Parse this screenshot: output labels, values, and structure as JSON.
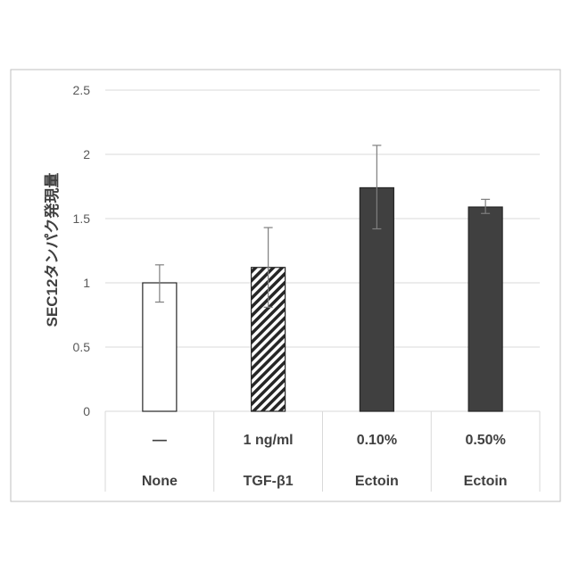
{
  "chart_data": {
    "type": "bar",
    "ylabel": "SEC12タンパク発現量",
    "ylim": [
      0,
      2.5
    ],
    "yticks": [
      "0",
      "0.5",
      "1",
      "1.5",
      "2",
      "2.5"
    ],
    "yticks_values": [
      0,
      0.5,
      1,
      1.5,
      2,
      2.5
    ],
    "grid": true,
    "categories": [
      {
        "dose": "—",
        "name": "None"
      },
      {
        "dose": "1 ng/ml",
        "name": "TGF-β1"
      },
      {
        "dose": "0.10%",
        "name": "Ectoin"
      },
      {
        "dose": "0.50%",
        "name": "Ectoin"
      }
    ],
    "values": [
      1.0,
      1.12,
      1.74,
      1.59
    ],
    "error_low": [
      0.85,
      0.81,
      1.42,
      1.54
    ],
    "error_high": [
      1.14,
      1.43,
      2.07,
      1.65
    ],
    "bar_styles": [
      "white",
      "hatched",
      "dark",
      "dark"
    ],
    "colors": {
      "dark": "#404040",
      "white": "#ffffff",
      "outline": "#262626",
      "grid": "#d9d9d9",
      "frame": "#bfbfbf"
    }
  }
}
